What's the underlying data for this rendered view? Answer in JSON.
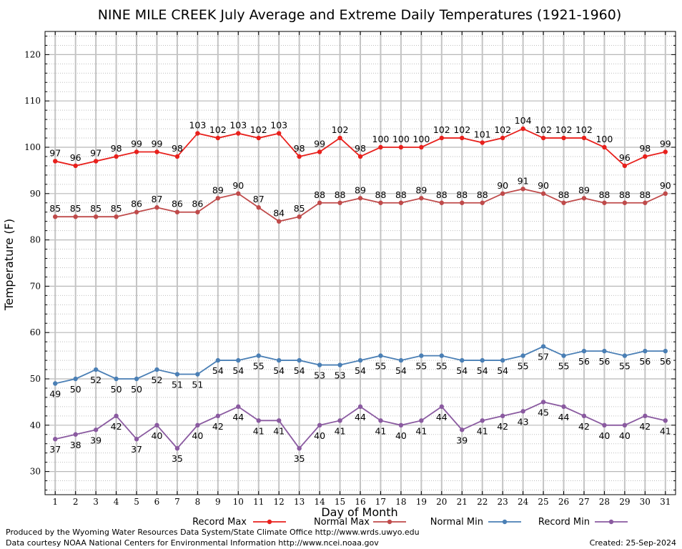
{
  "chart_data": {
    "type": "line",
    "title": "NINE MILE CREEK July Average and Extreme Daily Temperatures (1921-1960)",
    "xlabel": "Day of Month",
    "ylabel": "Temperature (F)",
    "x": [
      1,
      2,
      3,
      4,
      5,
      6,
      7,
      8,
      9,
      10,
      11,
      12,
      13,
      14,
      15,
      16,
      17,
      18,
      19,
      20,
      21,
      22,
      23,
      24,
      25,
      26,
      27,
      28,
      29,
      30,
      31
    ],
    "xlim": [
      0.5,
      31.5
    ],
    "ylim": [
      25,
      125
    ],
    "yticks": [
      30,
      40,
      50,
      60,
      70,
      80,
      90,
      100,
      110,
      120
    ],
    "grid": true,
    "legend_position": "bottom",
    "series": [
      {
        "name": "Record Max",
        "color": "#e8201c",
        "values": [
          97,
          96,
          97,
          98,
          99,
          99,
          98,
          103,
          102,
          103,
          102,
          103,
          98,
          99,
          102,
          98,
          100,
          100,
          100,
          102,
          102,
          101,
          102,
          104,
          102,
          102,
          102,
          100,
          96,
          98,
          99
        ]
      },
      {
        "name": "Normal Max",
        "color": "#bf4a4a",
        "values": [
          85,
          85,
          85,
          85,
          86,
          87,
          86,
          86,
          89,
          90,
          87,
          84,
          85,
          88,
          88,
          89,
          88,
          88,
          89,
          88,
          88,
          88,
          90,
          91,
          90,
          88,
          89,
          88,
          88,
          88,
          90
        ]
      },
      {
        "name": "Normal Min",
        "color": "#4a7fb5",
        "values": [
          49,
          50,
          52,
          50,
          50,
          52,
          51,
          51,
          54,
          54,
          55,
          54,
          54,
          53,
          53,
          54,
          55,
          54,
          55,
          55,
          54,
          54,
          54,
          55,
          57,
          55,
          56,
          56,
          55,
          56,
          56
        ]
      },
      {
        "name": "Record Min",
        "color": "#8a5aa0",
        "values": [
          37,
          38,
          39,
          42,
          37,
          40,
          35,
          40,
          42,
          44,
          41,
          41,
          35,
          40,
          41,
          44,
          41,
          40,
          41,
          44,
          39,
          41,
          42,
          43,
          45,
          44,
          42,
          40,
          40,
          42,
          41
        ]
      }
    ]
  },
  "footer": {
    "line1": "Produced by the Wyoming Water Resources Data System/State Climate Office http://www.wrds.uwyo.edu",
    "line2": "Data courtesy NOAA National Centers for Environmental Information http://www.ncei.noaa.gov",
    "created": "Created:  25-Sep-2024"
  }
}
